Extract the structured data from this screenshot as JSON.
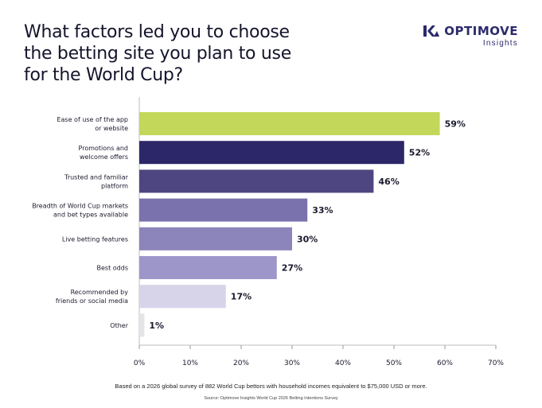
{
  "title_lines": [
    "What factors led you to choose",
    "the betting site you plan to use",
    "for the World Cup?"
  ],
  "brand": {
    "name": "OPTIMOVE",
    "sub": "Insights",
    "icon": "optimove-logo-icon",
    "color": "#2c2a6b"
  },
  "footnote": "Based on a 2026 global survey of 882 World Cup bettors with household incomes equivalent to $75,000 USD or more.",
  "source": "Source: Optimove Insights World Cup 2026 Betting Intentions Survey",
  "chart_data": {
    "type": "bar",
    "orientation": "horizontal",
    "categories": [
      [
        "Ease of use of the app",
        "or website"
      ],
      [
        "Promotions and",
        "welcome offers"
      ],
      [
        "Trusted and familiar",
        "platform"
      ],
      [
        "Breadth of World Cup markets",
        "and bet types available"
      ],
      [
        "Live betting features"
      ],
      [
        "Best odds"
      ],
      [
        "Recommended by",
        "friends or social media"
      ],
      [
        "Other"
      ]
    ],
    "values": [
      59,
      52,
      46,
      33,
      30,
      27,
      17,
      1
    ],
    "value_labels": [
      "59%",
      "52%",
      "46%",
      "33%",
      "30%",
      "27%",
      "17%",
      "1%"
    ],
    "colors": [
      "#c3d85a",
      "#2b2769",
      "#4d4680",
      "#7a72ad",
      "#8c85bb",
      "#9d97c9",
      "#d7d4ea",
      "#e3e3e8"
    ],
    "xlim": [
      0,
      70
    ],
    "x_ticks": [
      "0%",
      "10%",
      "20%",
      "30%",
      "40%",
      "50%",
      "60%",
      "70%"
    ],
    "grid": false
  }
}
